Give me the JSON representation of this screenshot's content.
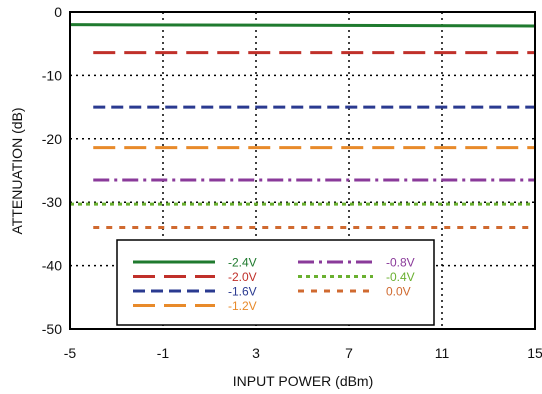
{
  "chart_data": {
    "type": "line",
    "title": "",
    "xlabel": "INPUT POWER (dBm)",
    "ylabel": "ATTENUATION (dB)",
    "xlim": [
      -5,
      15
    ],
    "ylim": [
      -50,
      0
    ],
    "xticks": [
      -5,
      -1,
      3,
      7,
      11,
      15
    ],
    "yticks": [
      0,
      -10,
      -20,
      -30,
      -40,
      -50
    ],
    "grid": true,
    "legend_position": "bottom-left",
    "series": [
      {
        "name": "-2.4V",
        "color": "#1f7a2e",
        "dash": "solid",
        "x": [
          -5,
          15
        ],
        "y": [
          -2.0,
          -2.2
        ]
      },
      {
        "name": "-2.0V",
        "color": "#c0302a",
        "dash": "longdash",
        "x": [
          -4,
          15
        ],
        "y": [
          -6.4,
          -6.4
        ]
      },
      {
        "name": "-1.6V",
        "color": "#2a3a90",
        "dash": "dash",
        "x": [
          -4,
          15
        ],
        "y": [
          -15.0,
          -15.0
        ]
      },
      {
        "name": "-1.2V",
        "color": "#e88a2a",
        "dash": "longdash",
        "x": [
          -4,
          15
        ],
        "y": [
          -21.4,
          -21.4
        ]
      },
      {
        "name": "-0.8V",
        "color": "#8a3a9a",
        "dash": "dashdot",
        "x": [
          -4,
          15
        ],
        "y": [
          -26.5,
          -26.5
        ]
      },
      {
        "name": "-0.4V",
        "color": "#6ab030",
        "dash": "dot",
        "x": [
          -5,
          15
        ],
        "y": [
          -30.3,
          -30.3
        ]
      },
      {
        "name": "0.0V",
        "color": "#d06a30",
        "dash": "shortdash",
        "x": [
          -4,
          15
        ],
        "y": [
          -34.0,
          -34.0
        ]
      }
    ]
  }
}
